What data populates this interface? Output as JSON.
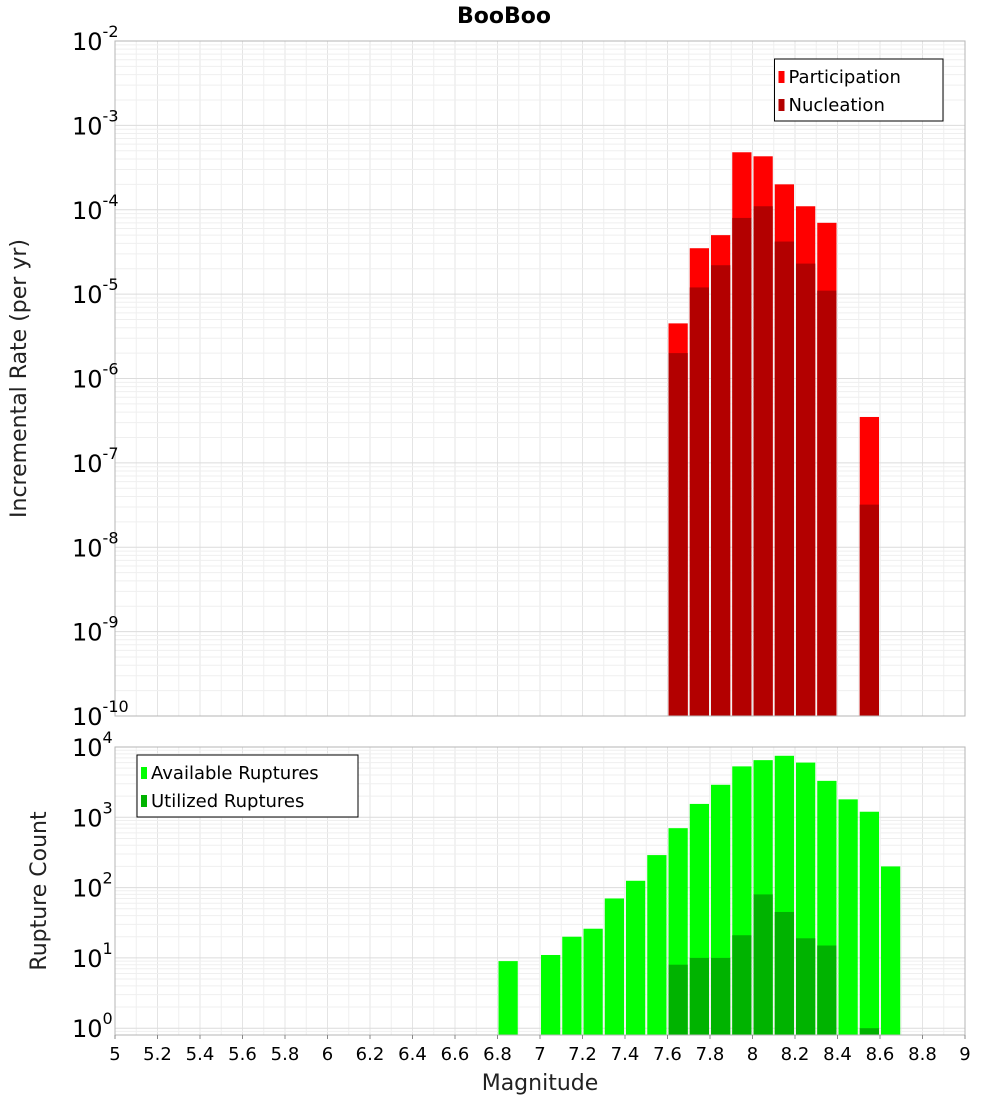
{
  "chart_data": [
    {
      "type": "bar",
      "title": "BooBoo",
      "ylabel": "Incremental Rate (per yr)",
      "xlim": [
        5,
        9
      ],
      "ylim": [
        1e-10,
        0.01
      ],
      "y_scale": "log",
      "y_ticks": [
        {
          "base": "10",
          "exp": "-10"
        },
        {
          "base": "10",
          "exp": "-9"
        },
        {
          "base": "10",
          "exp": "-8"
        },
        {
          "base": "10",
          "exp": "-7"
        },
        {
          "base": "10",
          "exp": "-6"
        },
        {
          "base": "10",
          "exp": "-5"
        },
        {
          "base": "10",
          "exp": "-4"
        },
        {
          "base": "10",
          "exp": "-3"
        },
        {
          "base": "10",
          "exp": "-2"
        }
      ],
      "grid": true,
      "legend_position": "top-right",
      "bar_width": 0.1,
      "series": [
        {
          "name": "Participation",
          "color": "#ff0000",
          "x": [
            7.65,
            7.75,
            7.85,
            7.95,
            8.05,
            8.15,
            8.25,
            8.35,
            8.55
          ],
          "values": [
            4.5e-06,
            3.5e-05,
            5e-05,
            0.00048,
            0.00043,
            0.0002,
            0.00011,
            7e-05,
            3.5e-07
          ]
        },
        {
          "name": "Nucleation",
          "color": "#b30000",
          "x": [
            7.65,
            7.75,
            7.85,
            7.95,
            8.05,
            8.15,
            8.25,
            8.35,
            8.55
          ],
          "values": [
            2e-06,
            1.2e-05,
            2.2e-05,
            8e-05,
            0.00011,
            4.2e-05,
            2.3e-05,
            1.1e-05,
            3.2e-08
          ]
        }
      ]
    },
    {
      "type": "bar",
      "xlabel": "Magnitude",
      "ylabel": "Rupture Count",
      "xlim": [
        5,
        9
      ],
      "ylim": [
        0.8,
        10000
      ],
      "y_scale": "log",
      "x_ticks": [
        "5",
        "5.2",
        "5.4",
        "5.6",
        "5.8",
        "6",
        "6.2",
        "6.4",
        "6.6",
        "6.8",
        "7",
        "7.2",
        "7.4",
        "7.6",
        "7.8",
        "8",
        "8.2",
        "8.4",
        "8.6",
        "8.8",
        "9"
      ],
      "y_ticks": [
        {
          "base": "10",
          "exp": "0"
        },
        {
          "base": "10",
          "exp": "1"
        },
        {
          "base": "10",
          "exp": "2"
        },
        {
          "base": "10",
          "exp": "3"
        },
        {
          "base": "10",
          "exp": "4"
        }
      ],
      "grid": true,
      "legend_position": "top-left",
      "bar_width": 0.1,
      "series": [
        {
          "name": "Available Ruptures",
          "color": "#00ff00",
          "x": [
            6.85,
            7.05,
            7.15,
            7.25,
            7.35,
            7.45,
            7.55,
            7.65,
            7.75,
            7.85,
            7.95,
            8.05,
            8.15,
            8.25,
            8.35,
            8.45,
            8.55,
            8.65
          ],
          "values": [
            9,
            11,
            20,
            26,
            70,
            125,
            290,
            700,
            1550,
            2900,
            5300,
            6500,
            7500,
            6000,
            3300,
            1800,
            1200,
            200
          ]
        },
        {
          "name": "Utilized Ruptures",
          "color": "#00b300",
          "x": [
            7.65,
            7.75,
            7.85,
            7.95,
            8.05,
            8.15,
            8.25,
            8.35,
            8.55
          ],
          "values": [
            8,
            10,
            10,
            21,
            80,
            45,
            19,
            15,
            1
          ]
        }
      ]
    }
  ]
}
